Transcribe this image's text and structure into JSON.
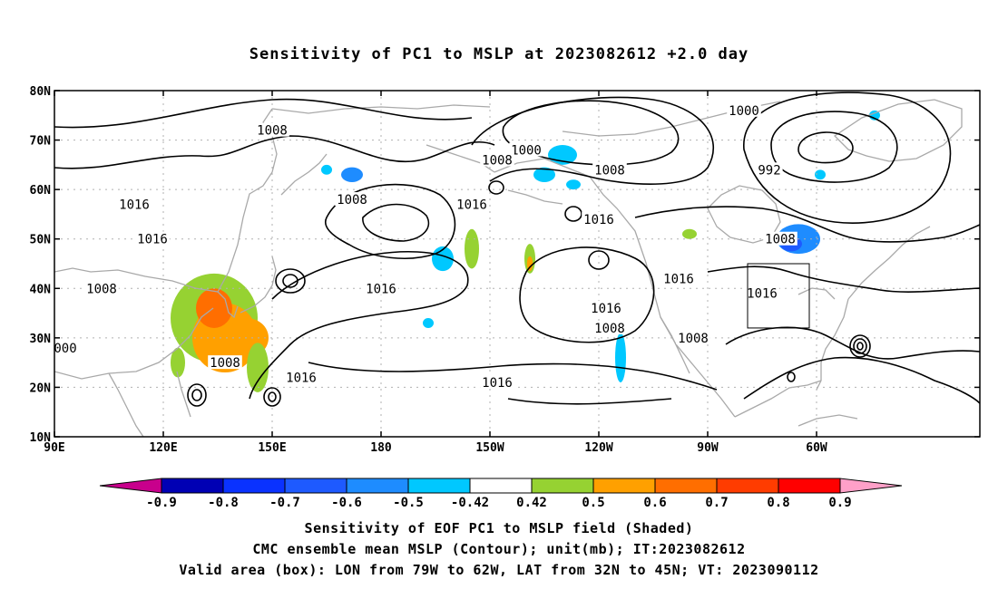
{
  "title": "Sensitivity of PC1 to MSLP at 2023082612 +2.0 day",
  "lat_labels": [
    "80N",
    "70N",
    "60N",
    "50N",
    "40N",
    "30N",
    "20N",
    "10N"
  ],
  "lon_labels": [
    "90E",
    "120E",
    "150E",
    "180",
    "150W",
    "120W",
    "90W",
    "60W"
  ],
  "contour_labels": [
    {
      "text": "1008",
      "lon": 150,
      "lat": 72
    },
    {
      "text": "1016",
      "lon": 112,
      "lat": 57
    },
    {
      "text": "1016",
      "lon": 117,
      "lat": 50
    },
    {
      "text": "1008",
      "lon": 103,
      "lat": 40
    },
    {
      "text": "000",
      "lon": 93,
      "lat": 28
    },
    {
      "text": "1008",
      "lon": 137,
      "lat": 25
    },
    {
      "text": "1016",
      "lon": 158,
      "lat": 22
    },
    {
      "text": "1008",
      "lon": 172,
      "lat": 58
    },
    {
      "text": "1016",
      "lon": 180,
      "lat": 40
    },
    {
      "text": "1016",
      "lon": 205,
      "lat": 57
    },
    {
      "text": "1016",
      "lon": 212,
      "lat": 21
    },
    {
      "text": "1000",
      "lon": 220,
      "lat": 68
    },
    {
      "text": "1008",
      "lon": 212,
      "lat": 66
    },
    {
      "text": "1008",
      "lon": 243,
      "lat": 64
    },
    {
      "text": "1016",
      "lon": 240,
      "lat": 54
    },
    {
      "text": "1016",
      "lon": 242,
      "lat": 36
    },
    {
      "text": "1008",
      "lon": 243,
      "lat": 32
    },
    {
      "text": "1016",
      "lon": 262,
      "lat": 42
    },
    {
      "text": "1008",
      "lon": 266,
      "lat": 30
    },
    {
      "text": "1000",
      "lon": 280,
      "lat": 76
    },
    {
      "text": "992",
      "lon": 287,
      "lat": 64
    },
    {
      "text": "1008",
      "lon": 290,
      "lat": 50
    },
    {
      "text": "1016",
      "lon": 285,
      "lat": 39
    }
  ],
  "valid_box": {
    "lon_west": -79,
    "lon_east": -62,
    "lat_south": 32,
    "lat_north": 45
  },
  "colorbar": {
    "labels": [
      "-0.9",
      "-0.8",
      "-0.7",
      "-0.6",
      "-0.5",
      "-0.42",
      "0.42",
      "0.5",
      "0.6",
      "0.7",
      "0.8",
      "0.9"
    ],
    "colors": [
      "#0000b4",
      "#0a32ff",
      "#1e5aff",
      "#1e8cff",
      "#00c8ff",
      "#ffffff",
      "#96d232",
      "#ffa000",
      "#ff6e00",
      "#ff3c00",
      "#ff0000"
    ],
    "low_end_color": "#c8008c",
    "high_end_color": "#ffa0c8"
  },
  "captions": [
    "Sensitivity of EOF PC1 to MSLP field (Shaded)",
    "CMC ensemble mean MSLP (Contour); unit(mb); IT:2023082612",
    "Valid area (box): LON from 79W to 62W, LAT from 32N to 45N; VT: 2023090112"
  ],
  "shading": [
    {
      "lon": 134,
      "lat": 34,
      "rx": 12,
      "ry": 9,
      "color": "#96d232"
    },
    {
      "lon": 137,
      "lat": 30,
      "rx": 9,
      "ry": 7,
      "color": "#ffa000"
    },
    {
      "lon": 134,
      "lat": 36,
      "rx": 5,
      "ry": 4,
      "color": "#ff6e00"
    },
    {
      "lon": 143,
      "lat": 30,
      "rx": 6,
      "ry": 4,
      "color": "#ffa000"
    },
    {
      "lon": 146,
      "lat": 24,
      "rx": 3,
      "ry": 5,
      "color": "#96d232"
    },
    {
      "lon": 124,
      "lat": 25,
      "rx": 2,
      "ry": 3,
      "color": "#96d232"
    },
    {
      "lon": 172,
      "lat": 63,
      "rx": 3,
      "ry": 1.5,
      "color": "#1e8cff"
    },
    {
      "lon": 165,
      "lat": 64,
      "rx": 1.5,
      "ry": 1,
      "color": "#00c8ff"
    },
    {
      "lon": 197,
      "lat": 46,
      "rx": 3,
      "ry": 2.5,
      "color": "#00c8ff"
    },
    {
      "lon": 193,
      "lat": 33,
      "rx": 1.5,
      "ry": 1,
      "color": "#00c8ff"
    },
    {
      "lon": 205,
      "lat": 48,
      "rx": 2,
      "ry": 4,
      "color": "#96d232"
    },
    {
      "lon": 221,
      "lat": 46,
      "rx": 1.5,
      "ry": 3,
      "color": "#96d232"
    },
    {
      "lon": 221,
      "lat": 45,
      "rx": 0.8,
      "ry": 1.5,
      "color": "#ffa000"
    },
    {
      "lon": 230,
      "lat": 67,
      "rx": 4,
      "ry": 2,
      "color": "#00c8ff"
    },
    {
      "lon": 225,
      "lat": 63,
      "rx": 3,
      "ry": 1.5,
      "color": "#00c8ff"
    },
    {
      "lon": 233,
      "lat": 61,
      "rx": 2,
      "ry": 1,
      "color": "#00c8ff"
    },
    {
      "lon": 246,
      "lat": 26,
      "rx": 1.5,
      "ry": 5,
      "color": "#00c8ff"
    },
    {
      "lon": 265,
      "lat": 51,
      "rx": 2,
      "ry": 1,
      "color": "#96d232"
    },
    {
      "lon": 295,
      "lat": 50,
      "rx": 6,
      "ry": 3,
      "color": "#1e8cff"
    },
    {
      "lon": 293,
      "lat": 49,
      "rx": 3,
      "ry": 1.5,
      "color": "#1e5aff"
    },
    {
      "lon": 301,
      "lat": 63,
      "rx": 1.5,
      "ry": 1,
      "color": "#00c8ff"
    },
    {
      "lon": 316,
      "lat": 75,
      "rx": 1.5,
      "ry": 1,
      "color": "#00c8ff"
    }
  ]
}
